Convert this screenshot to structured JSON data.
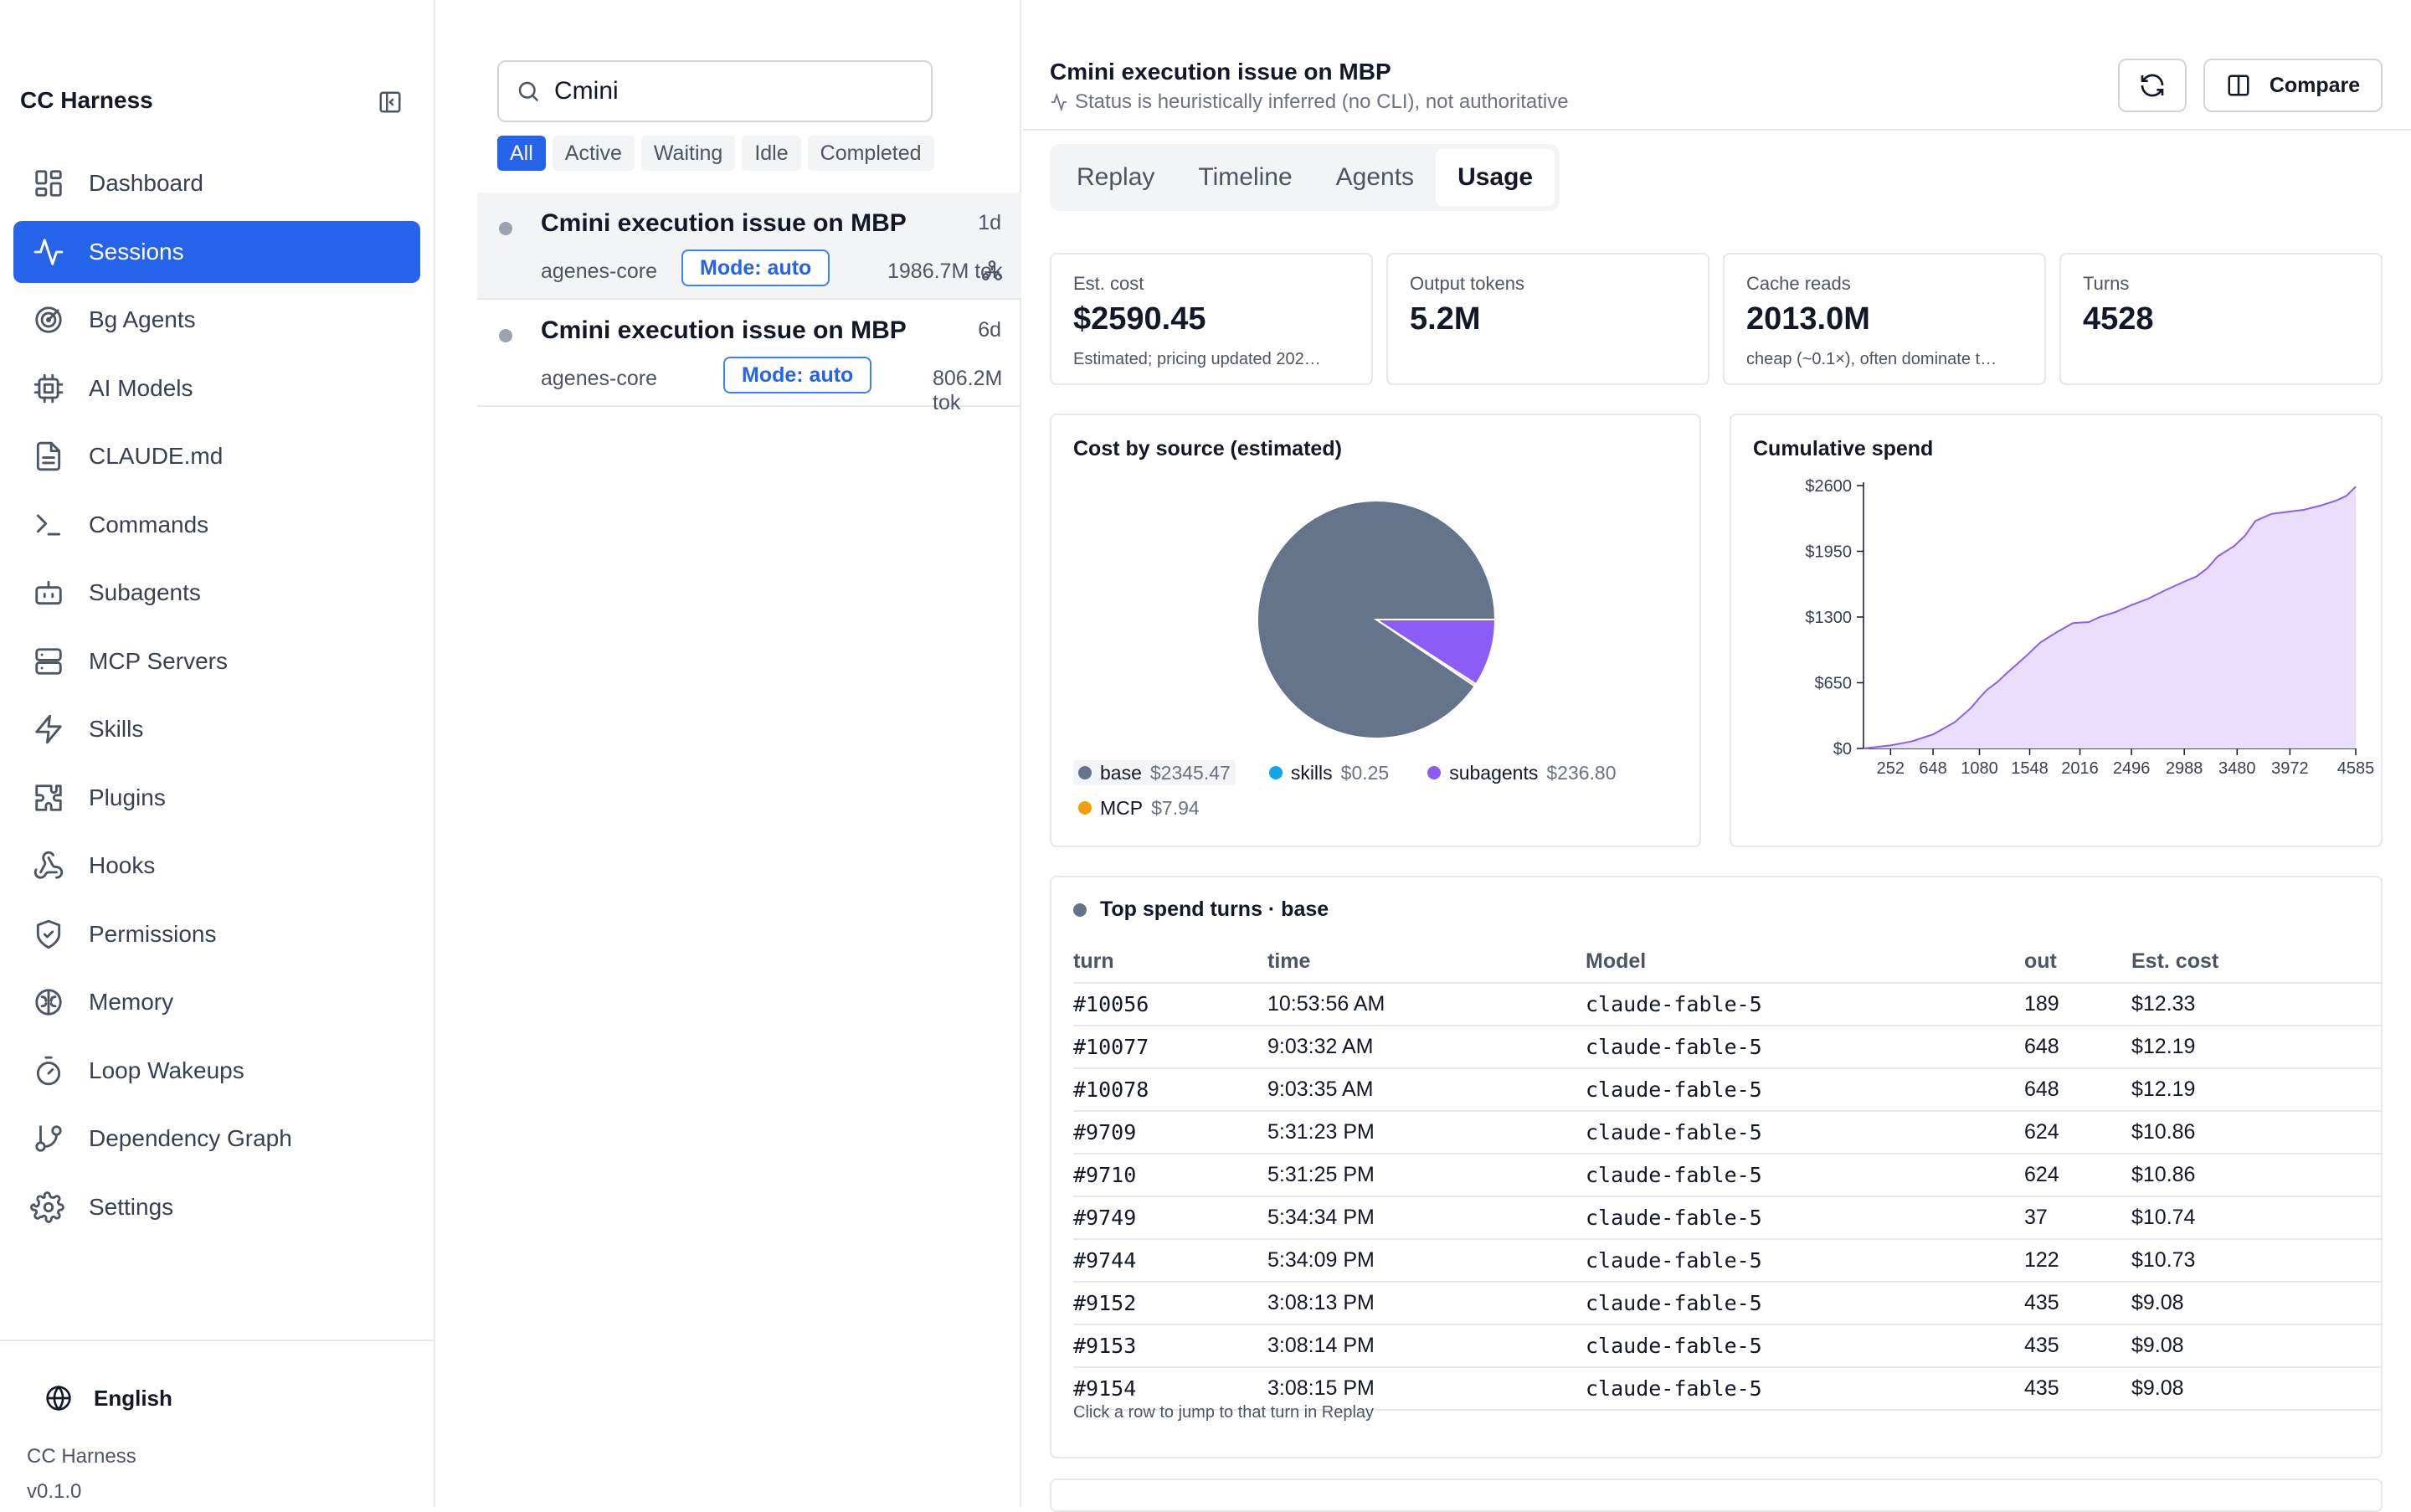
{
  "sidebar": {
    "brand": "CC Harness",
    "items": [
      {
        "label": "Dashboard",
        "icon": "dashboard-icon",
        "active": false
      },
      {
        "label": "Sessions",
        "icon": "activity-icon",
        "active": true
      },
      {
        "label": "Bg Agents",
        "icon": "radar-icon",
        "active": false
      },
      {
        "label": "AI Models",
        "icon": "cpu-icon",
        "active": false
      },
      {
        "label": "CLAUDE.md",
        "icon": "file-text-icon",
        "active": false
      },
      {
        "label": "Commands",
        "icon": "terminal-icon",
        "active": false
      },
      {
        "label": "Subagents",
        "icon": "bot-icon",
        "active": false
      },
      {
        "label": "MCP Servers",
        "icon": "server-icon",
        "active": false
      },
      {
        "label": "Skills",
        "icon": "zap-icon",
        "active": false
      },
      {
        "label": "Plugins",
        "icon": "puzzle-icon",
        "active": false
      },
      {
        "label": "Hooks",
        "icon": "webhook-icon",
        "active": false
      },
      {
        "label": "Permissions",
        "icon": "shield-icon",
        "active": false
      },
      {
        "label": "Memory",
        "icon": "brain-icon",
        "active": false
      },
      {
        "label": "Loop Wakeups",
        "icon": "timer-icon",
        "active": false
      },
      {
        "label": "Dependency Graph",
        "icon": "git-branch-icon",
        "active": false
      },
      {
        "label": "Settings",
        "icon": "gear-icon",
        "active": false
      }
    ],
    "footer": {
      "language": "English",
      "app": "CC Harness",
      "version": "v0.1.0"
    }
  },
  "list": {
    "search_value": "Cmini",
    "filters": [
      "All",
      "Active",
      "Waiting",
      "Idle",
      "Completed"
    ],
    "active_filter": "All",
    "sessions": [
      {
        "title": "Cmini execution issue on MBP",
        "age": "1d",
        "project": "agenes-core",
        "mode": "Mode: auto",
        "tokens": "1986.7M tok",
        "selected": true
      },
      {
        "title": "Cmini execution issue on MBP",
        "age": "6d",
        "project": "agenes-core",
        "mode": "Mode: auto",
        "tokens": "806.2M tok",
        "selected": false
      }
    ]
  },
  "detail": {
    "title": "Cmini execution issue on MBP",
    "status_note": "Status is heuristically inferred (no CLI), not authoritative",
    "compare_label": "Compare",
    "tabs": [
      "Replay",
      "Timeline",
      "Agents",
      "Usage"
    ],
    "active_tab": "Usage",
    "stats": [
      {
        "label": "Est. cost",
        "value": "$2590.45",
        "note": "Estimated; pricing updated 202…"
      },
      {
        "label": "Output tokens",
        "value": "5.2M",
        "note": ""
      },
      {
        "label": "Cache reads",
        "value": "2013.0M",
        "note": "cheap (~0.1×), often dominate t…"
      },
      {
        "label": "Turns",
        "value": "4528",
        "note": ""
      }
    ]
  },
  "colors": {
    "accent": "#2563eb",
    "base": "#64748b",
    "skills": "#0ea5e9",
    "subagents": "#8b5cf6",
    "mcp": "#f59e0b",
    "area_fill": "#e9defc",
    "area_line": "#8b5cf6"
  },
  "chart_data": [
    {
      "type": "pie",
      "title": "Cost by source (estimated)",
      "slices": [
        {
          "name": "base",
          "label": "$2345.47",
          "value": 2345.47
        },
        {
          "name": "skills",
          "label": "$0.25",
          "value": 0.25
        },
        {
          "name": "subagents",
          "label": "$236.80",
          "value": 236.8
        },
        {
          "name": "MCP",
          "label": "$7.94",
          "value": 7.94
        }
      ]
    },
    {
      "type": "area",
      "title": "Cumulative spend",
      "xlim": [
        0,
        4585
      ],
      "ylim": [
        0,
        2600
      ],
      "xticks": [
        252,
        648,
        1080,
        1548,
        2016,
        2496,
        2988,
        3480,
        3972,
        4585
      ],
      "yticks": [
        0,
        650,
        1300,
        1950,
        2600
      ],
      "ytick_labels": [
        "$0",
        "$650",
        "$1300",
        "$1950",
        "$2600"
      ],
      "x": [
        0,
        250,
        450,
        650,
        850,
        1000,
        1080,
        1150,
        1250,
        1350,
        1500,
        1650,
        1800,
        1950,
        2100,
        2200,
        2350,
        2500,
        2650,
        2800,
        2988,
        3100,
        3200,
        3300,
        3450,
        3550,
        3650,
        3800,
        3950,
        4100,
        4250,
        4400,
        4500,
        4585
      ],
      "y": [
        0,
        30,
        70,
        140,
        260,
        400,
        500,
        580,
        660,
        760,
        900,
        1050,
        1150,
        1240,
        1250,
        1300,
        1350,
        1420,
        1480,
        1560,
        1650,
        1700,
        1780,
        1900,
        2000,
        2100,
        2250,
        2320,
        2340,
        2360,
        2400,
        2450,
        2500,
        2590
      ]
    }
  ],
  "table": {
    "heading": "Top spend turns · base",
    "columns": [
      "turn",
      "time",
      "Model",
      "out",
      "Est. cost"
    ],
    "rows": [
      [
        "#10056",
        "10:53:56 AM",
        "claude-fable-5",
        "189",
        "$12.33"
      ],
      [
        "#10077",
        "9:03:32 AM",
        "claude-fable-5",
        "648",
        "$12.19"
      ],
      [
        "#10078",
        "9:03:35 AM",
        "claude-fable-5",
        "648",
        "$12.19"
      ],
      [
        "#9709",
        "5:31:23 PM",
        "claude-fable-5",
        "624",
        "$10.86"
      ],
      [
        "#9710",
        "5:31:25 PM",
        "claude-fable-5",
        "624",
        "$10.86"
      ],
      [
        "#9749",
        "5:34:34 PM",
        "claude-fable-5",
        "37",
        "$10.74"
      ],
      [
        "#9744",
        "5:34:09 PM",
        "claude-fable-5",
        "122",
        "$10.73"
      ],
      [
        "#9152",
        "3:08:13 PM",
        "claude-fable-5",
        "435",
        "$9.08"
      ],
      [
        "#9153",
        "3:08:14 PM",
        "claude-fable-5",
        "435",
        "$9.08"
      ],
      [
        "#9154",
        "3:08:15 PM",
        "claude-fable-5",
        "435",
        "$9.08"
      ]
    ],
    "footer": "Click a row to jump to that turn in Replay"
  }
}
